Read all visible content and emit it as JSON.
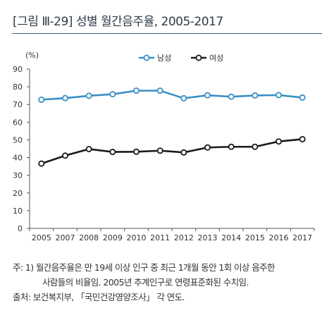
{
  "figure": {
    "title": "[그림 Ⅲ-29]  성별 월간음주율, 2005-2017"
  },
  "chart_data": {
    "type": "line",
    "title": "",
    "ylabel": "(%)",
    "xlabel": "",
    "ylim": [
      0,
      90
    ],
    "yticks": [
      "0",
      "10",
      "20",
      "30",
      "40",
      "50",
      "60",
      "70",
      "80",
      "90"
    ],
    "categories": [
      "2005",
      "2007",
      "2008",
      "2009",
      "2010",
      "2011",
      "2012",
      "2013",
      "2014",
      "2015",
      "2016",
      "2017"
    ],
    "grid": false,
    "legend_position": "top",
    "series": [
      {
        "name": "남성",
        "color": "#3b8fc7",
        "marker": "open-circle",
        "values": [
          72.7,
          73.6,
          74.9,
          75.8,
          77.8,
          77.8,
          73.5,
          75.2,
          74.4,
          75.1,
          75.3,
          73.9
        ]
      },
      {
        "name": "여성",
        "color": "#1a1a1a",
        "marker": "open-circle",
        "values": [
          36.6,
          41.1,
          44.8,
          43.2,
          43.3,
          43.9,
          42.9,
          45.7,
          46.1,
          46.1,
          49.1,
          50.4
        ]
      }
    ]
  },
  "notes": {
    "line1": "주: 1) 월간음주율은 만 19세 이상 인구 중 최근 1개월 동안 1회 이상 음주한",
    "line2": "사람들의 비율임. 2005년 추계인구로 연령표준화된 수치임.",
    "line3": "출처: 보건복지부, 「국민건강영양조사」 각 연도."
  }
}
